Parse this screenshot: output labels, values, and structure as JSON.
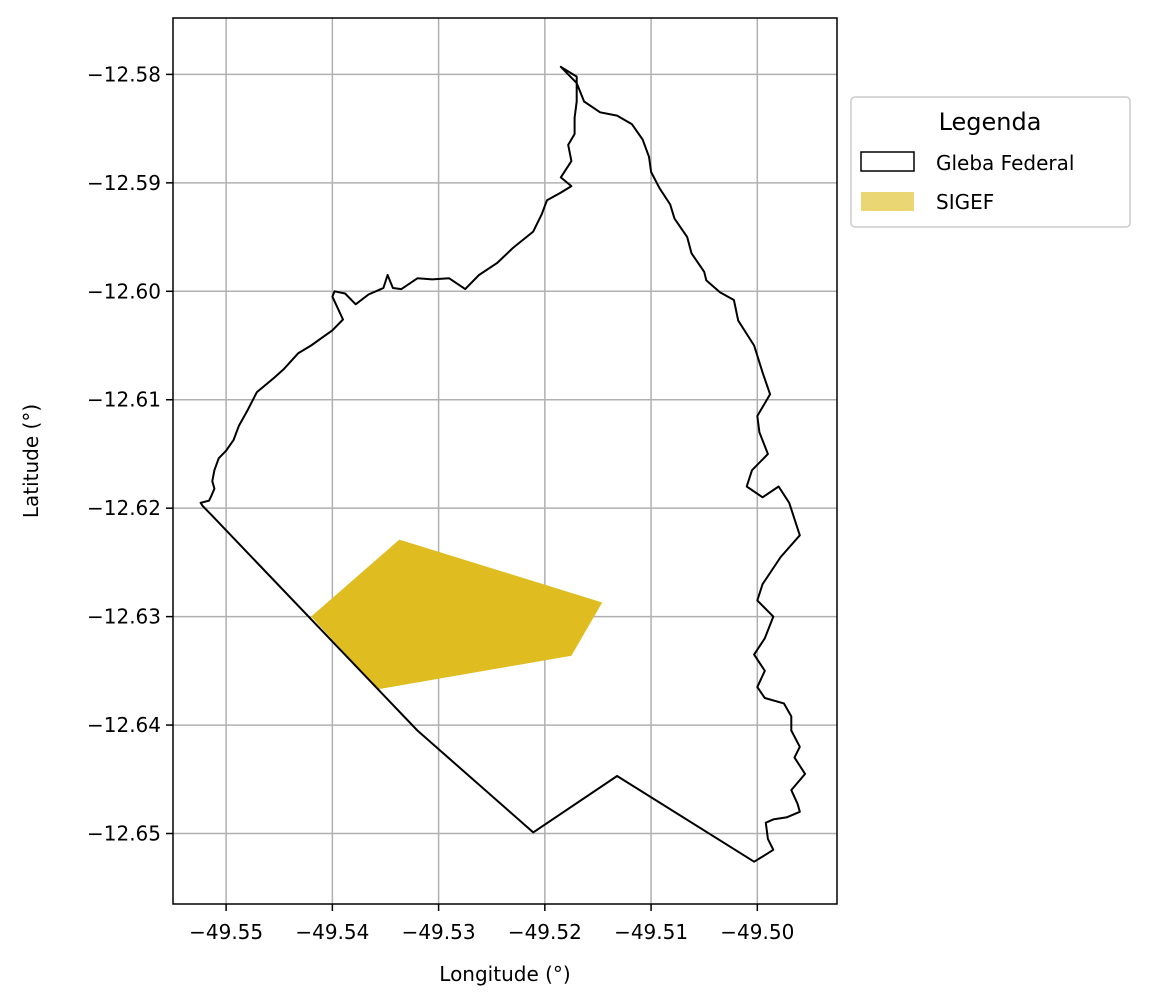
{
  "chart_data": {
    "type": "map",
    "xlabel": "Longitude (°)",
    "ylabel": "Latitude (°)",
    "xlim": [
      -49.555,
      -49.4925
    ],
    "ylim": [
      -12.6565,
      -12.5748
    ],
    "xticks": [
      -49.55,
      -49.54,
      -49.53,
      -49.52,
      -49.51,
      -49.5
    ],
    "xtick_labels": [
      "−49.55",
      "−49.54",
      "−49.53",
      "−49.52",
      "−49.51",
      "−49.50"
    ],
    "yticks": [
      -12.58,
      -12.59,
      -12.6,
      -12.61,
      -12.62,
      -12.63,
      -12.64,
      -12.65
    ],
    "ytick_labels": [
      "−12.58",
      "−12.59",
      "−12.60",
      "−12.61",
      "−12.62",
      "−12.63",
      "−12.64",
      "−12.65"
    ],
    "grid": true,
    "legend": {
      "title": "Legenda",
      "placement": "outside-upper-right",
      "entries": [
        {
          "label": "Gleba Federal",
          "style": "outline",
          "color": "#000000"
        },
        {
          "label": "SIGEF",
          "style": "fill",
          "color": "#ebd674"
        }
      ]
    },
    "layers": [
      {
        "name": "Gleba Federal",
        "geometry": "polygon",
        "stroke": "#000000",
        "fill": "none",
        "coordinates": [
          [
            -49.5514,
            -12.6206
          ],
          [
            -49.5522,
            -12.6198
          ],
          [
            -49.5524,
            -12.6195
          ],
          [
            -49.5516,
            -12.6193
          ],
          [
            -49.5514,
            -12.6189
          ],
          [
            -49.5511,
            -12.6182
          ],
          [
            -49.5513,
            -12.6175
          ],
          [
            -49.5511,
            -12.6165
          ],
          [
            -49.5507,
            -12.6154
          ],
          [
            -49.55,
            -12.6147
          ],
          [
            -49.5493,
            -12.6137
          ],
          [
            -49.5488,
            -12.6124
          ],
          [
            -49.548,
            -12.611
          ],
          [
            -49.5471,
            -12.6093
          ],
          [
            -49.5455,
            -12.608
          ],
          [
            -49.5446,
            -12.6072
          ],
          [
            -49.5432,
            -12.6057
          ],
          [
            -49.542,
            -12.605
          ],
          [
            -49.54,
            -12.6036
          ],
          [
            -49.539,
            -12.6026
          ],
          [
            -49.54,
            -12.6005
          ],
          [
            -49.5398,
            -12.6
          ],
          [
            -49.5388,
            -12.6002
          ],
          [
            -49.5378,
            -12.6012
          ],
          [
            -49.5366,
            -12.6003
          ],
          [
            -49.5352,
            -12.5997
          ],
          [
            -49.5348,
            -12.5985
          ],
          [
            -49.5343,
            -12.5997
          ],
          [
            -49.5335,
            -12.5998
          ],
          [
            -49.532,
            -12.5988
          ],
          [
            -49.5306,
            -12.5989
          ],
          [
            -49.529,
            -12.5988
          ],
          [
            -49.5275,
            -12.5998
          ],
          [
            -49.5262,
            -12.5985
          ],
          [
            -49.5245,
            -12.5974
          ],
          [
            -49.523,
            -12.596
          ],
          [
            -49.5211,
            -12.5945
          ],
          [
            -49.5203,
            -12.5929
          ],
          [
            -49.5198,
            -12.5916
          ],
          [
            -49.5185,
            -12.5909
          ],
          [
            -49.5175,
            -12.5903
          ],
          [
            -49.5185,
            -12.5895
          ],
          [
            -49.5175,
            -12.588
          ],
          [
            -49.5178,
            -12.5865
          ],
          [
            -49.5172,
            -12.5855
          ],
          [
            -49.5172,
            -12.584
          ],
          [
            -49.517,
            -12.5825
          ],
          [
            -49.517,
            -12.5802
          ],
          [
            -49.5185,
            -12.5793
          ],
          [
            -49.517,
            -12.5808
          ],
          [
            -49.5163,
            -12.5825
          ],
          [
            -49.5148,
            -12.5835
          ],
          [
            -49.5132,
            -12.5838
          ],
          [
            -49.5118,
            -12.5846
          ],
          [
            -49.5108,
            -12.586
          ],
          [
            -49.5102,
            -12.5876
          ],
          [
            -49.51,
            -12.589
          ],
          [
            -49.5092,
            -12.5905
          ],
          [
            -49.5082,
            -12.592
          ],
          [
            -49.5078,
            -12.5933
          ],
          [
            -49.5066,
            -12.595
          ],
          [
            -49.5062,
            -12.5965
          ],
          [
            -49.505,
            -12.5982
          ],
          [
            -49.5048,
            -12.599
          ],
          [
            -49.5035,
            -12.6001
          ],
          [
            -49.5022,
            -12.6008
          ],
          [
            -49.5018,
            -12.6027
          ],
          [
            -49.5003,
            -12.605
          ],
          [
            -49.4995,
            -12.6075
          ],
          [
            -49.4988,
            -12.6095
          ],
          [
            -49.5,
            -12.6115
          ],
          [
            -49.4998,
            -12.613
          ],
          [
            -49.499,
            -12.615
          ],
          [
            -49.5005,
            -12.6165
          ],
          [
            -49.501,
            -12.618
          ],
          [
            -49.4995,
            -12.619
          ],
          [
            -49.498,
            -12.618
          ],
          [
            -49.497,
            -12.6195
          ],
          [
            -49.496,
            -12.6225
          ],
          [
            -49.4978,
            -12.6245
          ],
          [
            -49.4995,
            -12.627
          ],
          [
            -49.5,
            -12.6285
          ],
          [
            -49.4985,
            -12.63
          ],
          [
            -49.4993,
            -12.632
          ],
          [
            -49.5003,
            -12.6335
          ],
          [
            -49.4993,
            -12.635
          ],
          [
            -49.5,
            -12.6365
          ],
          [
            -49.4993,
            -12.6375
          ],
          [
            -49.4975,
            -12.638
          ],
          [
            -49.4968,
            -12.6392
          ],
          [
            -49.4968,
            -12.6405
          ],
          [
            -49.496,
            -12.642
          ],
          [
            -49.4965,
            -12.643
          ],
          [
            -49.4955,
            -12.6445
          ],
          [
            -49.4968,
            -12.646
          ],
          [
            -49.4962,
            -12.6473
          ],
          [
            -49.496,
            -12.648
          ],
          [
            -49.4972,
            -12.6485
          ],
          [
            -49.4985,
            -12.6487
          ],
          [
            -49.4992,
            -12.649
          ],
          [
            -49.499,
            -12.6505
          ],
          [
            -49.4985,
            -12.6515
          ],
          [
            -49.4993,
            -12.652
          ],
          [
            -49.5003,
            -12.6526
          ],
          [
            -49.5132,
            -12.6447
          ],
          [
            -49.5211,
            -12.6499
          ],
          [
            -49.532,
            -12.6405
          ],
          [
            -49.5514,
            -12.6206
          ]
        ]
      },
      {
        "name": "SIGEF",
        "geometry": "polygon",
        "stroke": "none",
        "fill": "#dfbd20",
        "coordinates": [
          [
            -49.542,
            -12.63
          ],
          [
            -49.5337,
            -12.6229
          ],
          [
            -49.5146,
            -12.6287
          ],
          [
            -49.5175,
            -12.6336
          ],
          [
            -49.5357,
            -12.6367
          ],
          [
            -49.542,
            -12.63
          ]
        ]
      }
    ]
  }
}
